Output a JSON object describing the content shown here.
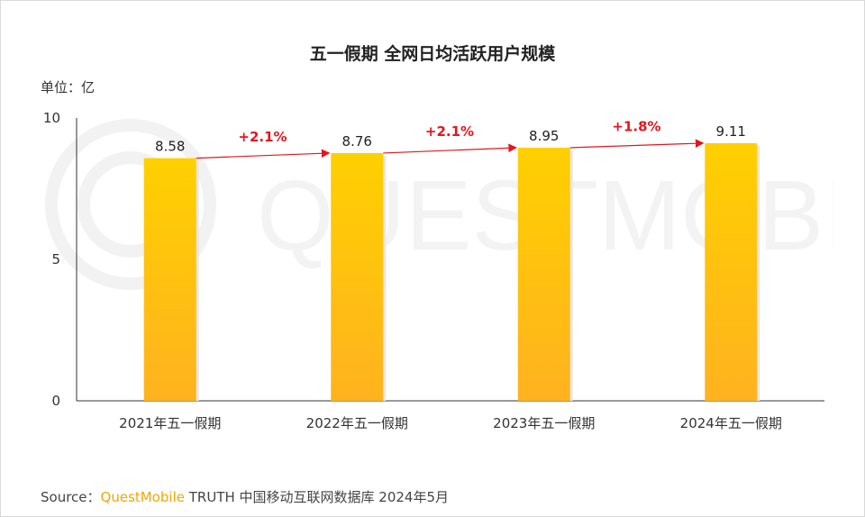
{
  "chart_data": {
    "type": "bar",
    "title": "五一假期 全网日均活跃用户规模",
    "unit_label": "单位：亿",
    "categories": [
      "2021年五一假期",
      "2022年五一假期",
      "2023年五一假期",
      "2024年五一假期"
    ],
    "values": [
      8.58,
      8.76,
      8.95,
      9.11
    ],
    "value_labels": [
      "8.58",
      "8.76",
      "8.95",
      "9.11"
    ],
    "growth_labels": [
      "+2.1%",
      "+2.1%",
      "+1.8%"
    ],
    "y_ticks": [
      "0",
      "5",
      "10"
    ],
    "ylim": [
      0,
      10
    ],
    "grid": false,
    "colors": {
      "bar_top": "#FFD000",
      "bar_bottom": "#FFB21F",
      "growth": "#E8141B"
    }
  },
  "watermark": "QUESTMOBILE",
  "source": {
    "prefix": "Source：",
    "brand": "QuestMobile",
    "text": " TRUTH 中国移动互联网数据库 2024年5月"
  }
}
